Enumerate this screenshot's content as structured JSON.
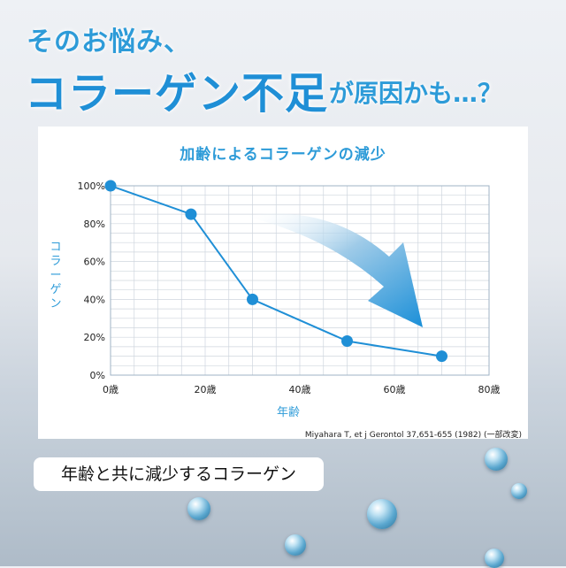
{
  "headline": {
    "line1": "そのお悩み、",
    "main": "コラーゲン不足",
    "tail": "が原因かも…？"
  },
  "caption": "年齢と共に減少するコラーゲン",
  "source": "Miyahara T, et j Gerontol 37,651-655 (1982) (一部改変)",
  "colors": {
    "accent": "#2d9bd8",
    "line": "#1f8fd6",
    "grid": "#cfd6de"
  },
  "chart_data": {
    "type": "line",
    "title": "加齢によるコラーゲンの減少",
    "xlabel": "年齢",
    "ylabel": "コラーゲン",
    "xlim": [
      0,
      80
    ],
    "ylim": [
      0,
      100
    ],
    "x_ticks": [
      {
        "value": 0,
        "label": "0歳"
      },
      {
        "value": 20,
        "label": "20歳"
      },
      {
        "value": 40,
        "label": "40歳"
      },
      {
        "value": 60,
        "label": "60歳"
      },
      {
        "value": 80,
        "label": "80歳"
      }
    ],
    "y_ticks": [
      {
        "value": 0,
        "label": "0%"
      },
      {
        "value": 20,
        "label": "20%"
      },
      {
        "value": 40,
        "label": "40%"
      },
      {
        "value": 60,
        "label": "60%"
      },
      {
        "value": 80,
        "label": "80%"
      },
      {
        "value": 100,
        "label": "100%"
      }
    ],
    "grid": true,
    "series": [
      {
        "points": [
          {
            "x": 0,
            "y": 100
          },
          {
            "x": 17,
            "y": 85
          },
          {
            "x": 30,
            "y": 40
          },
          {
            "x": 50,
            "y": 18
          },
          {
            "x": 70,
            "y": 10
          }
        ]
      }
    ],
    "annotation": "downward-arrow"
  }
}
